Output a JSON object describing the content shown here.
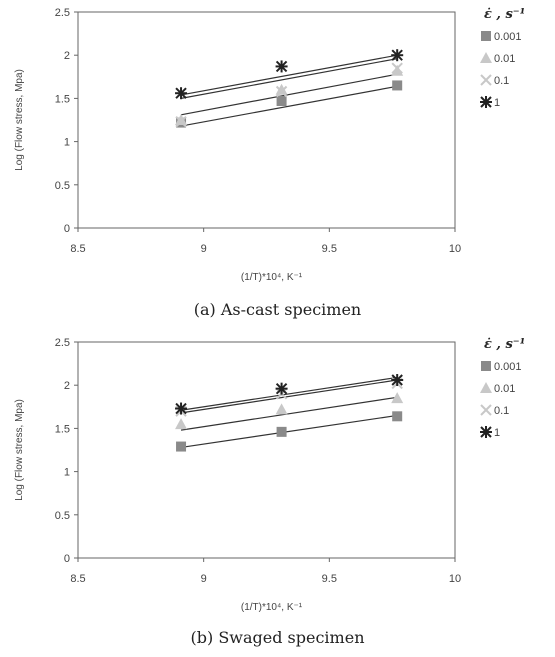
{
  "legend_title": "ε̇ , s⁻¹",
  "chart_data": [
    {
      "type": "scatter",
      "title": "",
      "caption": "(a)  As-cast specimen",
      "xlabel": "(1/T)*10⁴, K⁻¹",
      "ylabel": "Log (Flow stress, Mpa)",
      "xlim": [
        8.5,
        10
      ],
      "ylim": [
        0,
        2.5
      ],
      "xticks": [
        "8.5",
        "9",
        "9.5",
        "10"
      ],
      "yticks": [
        "0",
        "0.5",
        "1",
        "1.5",
        "2",
        "2.5"
      ],
      "legend_position": "right",
      "grid": false,
      "series": [
        {
          "name": "0.001",
          "marker": "square",
          "color": "#8a8a8a",
          "x": [
            8.91,
            9.31,
            9.77
          ],
          "y": [
            1.22,
            1.47,
            1.65
          ],
          "fit": [
            [
              8.91,
              1.18
            ],
            [
              9.77,
              1.64
            ]
          ]
        },
        {
          "name": "0.01",
          "marker": "triangle",
          "color": "#c8c8c8",
          "x": [
            8.91,
            9.31,
            9.77
          ],
          "y": [
            1.25,
            1.6,
            1.82
          ],
          "fit": [
            [
              8.91,
              1.31
            ],
            [
              9.77,
              1.78
            ]
          ]
        },
        {
          "name": "0.1",
          "marker": "cross",
          "color": "#c8c8c8",
          "x": [
            8.91,
            9.31,
            9.77
          ],
          "y": [
            1.23,
            1.58,
            1.85
          ],
          "fit": [
            [
              8.91,
              1.5
            ],
            [
              9.77,
              1.96
            ]
          ]
        },
        {
          "name": "1",
          "marker": "asterisk",
          "color": "#222222",
          "x": [
            8.91,
            9.31,
            9.77
          ],
          "y": [
            1.56,
            1.87,
            2.0
          ],
          "fit": [
            [
              8.91,
              1.54
            ],
            [
              9.77,
              2.0
            ]
          ]
        }
      ]
    },
    {
      "type": "scatter",
      "title": "",
      "caption": "(b)  Swaged specimen",
      "xlabel": "(1/T)*10⁴, K⁻¹",
      "ylabel": "Log (Flow stress, Mpa)",
      "xlim": [
        8.5,
        10
      ],
      "ylim": [
        0,
        2.5
      ],
      "xticks": [
        "8.5",
        "9",
        "9.5",
        "10"
      ],
      "yticks": [
        "0",
        "0.5",
        "1",
        "1.5",
        "2",
        "2.5"
      ],
      "legend_position": "right",
      "grid": false,
      "series": [
        {
          "name": "0.001",
          "marker": "square",
          "color": "#8a8a8a",
          "x": [
            8.91,
            9.31,
            9.77
          ],
          "y": [
            1.29,
            1.46,
            1.64
          ],
          "fit": [
            [
              8.91,
              1.28
            ],
            [
              9.77,
              1.65
            ]
          ]
        },
        {
          "name": "0.01",
          "marker": "triangle",
          "color": "#c8c8c8",
          "x": [
            8.91,
            9.31,
            9.77
          ],
          "y": [
            1.55,
            1.72,
            1.85
          ],
          "fit": [
            [
              8.91,
              1.48
            ],
            [
              9.77,
              1.86
            ]
          ]
        },
        {
          "name": "0.1",
          "marker": "cross",
          "color": "#c8c8c8",
          "x": [
            8.91,
            9.31,
            9.77
          ],
          "y": [
            1.7,
            1.9,
            2.02
          ],
          "fit": [
            [
              8.91,
              1.68
            ],
            [
              9.77,
              2.06
            ]
          ]
        },
        {
          "name": "1",
          "marker": "asterisk",
          "color": "#222222",
          "x": [
            8.91,
            9.31,
            9.77
          ],
          "y": [
            1.73,
            1.96,
            2.06
          ],
          "fit": [
            [
              8.91,
              1.71
            ],
            [
              9.77,
              2.09
            ]
          ]
        }
      ]
    }
  ]
}
